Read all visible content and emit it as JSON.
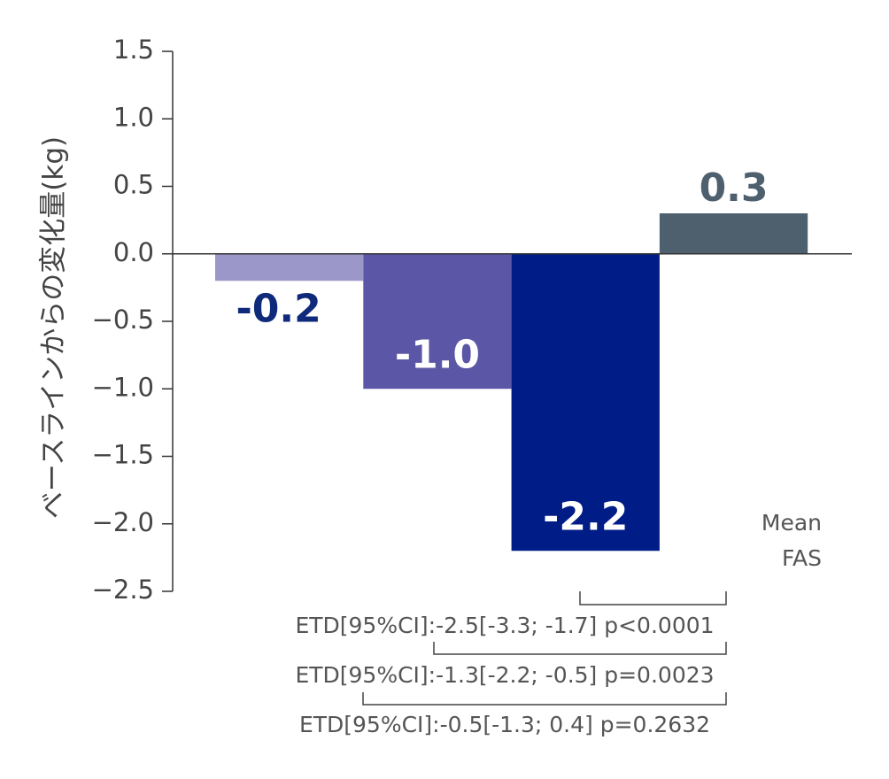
{
  "chart_data": {
    "type": "bar",
    "y_label": "ベースラインからの変化量(kg)",
    "categories": [
      null,
      null,
      null,
      null
    ],
    "values": [
      -0.2,
      -1.0,
      -2.2,
      0.3
    ],
    "value_labels": [
      "-0.2",
      "-1.0",
      "-2.2",
      "0.3"
    ],
    "colors": [
      "#9b97c9",
      "#5b57a6",
      "#001c87",
      "#4e5f6e"
    ],
    "label_colors": [
      "#0f2a7a",
      "#ffffff",
      "#ffffff",
      "#4e5f6e"
    ],
    "ylim": [
      -2.5,
      1.5
    ],
    "yticks": [
      {
        "value": -2.5,
        "label": "−2.5"
      },
      {
        "value": -2.0,
        "label": "−2.0"
      },
      {
        "value": -1.5,
        "label": "−1.5"
      },
      {
        "value": -1.0,
        "label": "−1.0"
      },
      {
        "value": -0.5,
        "label": "−0.5"
      },
      {
        "value": 0.0,
        "label": "0.0"
      },
      0.5,
      {
        "value": 1.0,
        "label": "1.0"
      },
      1.5
    ],
    "annotations": [
      "Mean",
      "FAS",
      "ETD[95%CI]:-2.5[-3.3; -1.7] p<0.0001",
      "ETD[95%CI]:-1.3[-2.2; -0.5] p=0.0023",
      "ETD[95%CI]:-0.5[-1.3; 0.4] p=0.2632"
    ]
  }
}
